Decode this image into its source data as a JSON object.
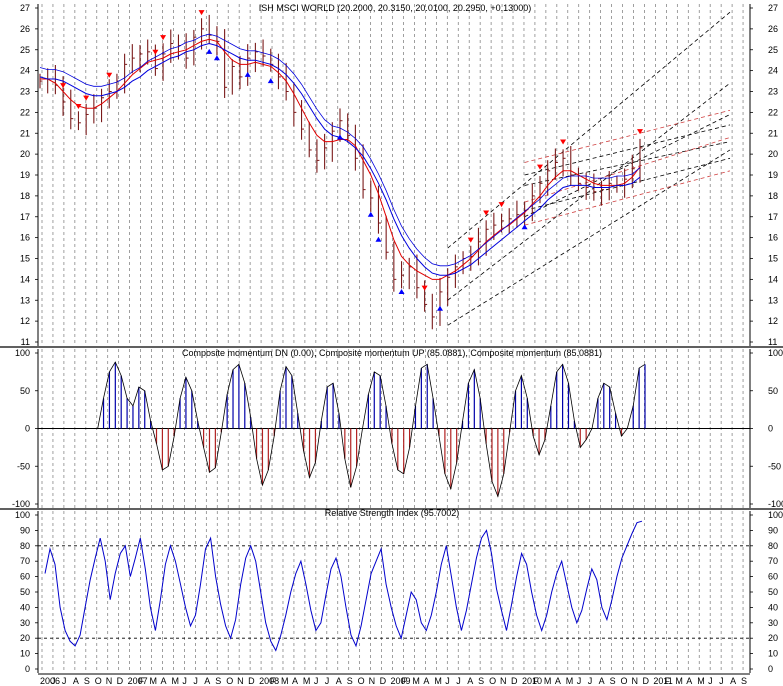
{
  "colors": {
    "price_bar": "#7a1a1a",
    "ma_red": "#e00000",
    "ma_blue": "#0000dd",
    "channel_black": "#000000",
    "channel_red": "#d04040",
    "signal_up": "#ff0000",
    "signal_down": "#0000ff",
    "mom_up": "#0000aa",
    "mom_dn": "#b22222",
    "rsi": "#0000cc",
    "grid": "#777777"
  },
  "chart_data": [
    {
      "type": "line",
      "title": "ISH MSCI WORLD (20.2000, 20.3150, 20.0100, 20.2950, +0.13000)",
      "ylim": [
        11,
        27
      ],
      "yticks": [
        "11",
        "12",
        "13",
        "14",
        "15",
        "16",
        "17",
        "18",
        "19",
        "20",
        "21",
        "22",
        "23",
        "24",
        "25",
        "26",
        "27"
      ],
      "series": [
        {
          "role": "close",
          "values": [
            23.5,
            23.6,
            23.3,
            22.5,
            21.7,
            21.5,
            21.9,
            22.2,
            22.7,
            23.0,
            23.5,
            24.3,
            24.6,
            24.8,
            24.9,
            24.1,
            24.8,
            25.3,
            25.2,
            24.6,
            25.6,
            26.0,
            25.7,
            25.4,
            23.2,
            24.2,
            23.7,
            24.6,
            24.9,
            24.7,
            24.3,
            23.7,
            23.0,
            22.0,
            21.2,
            20.2,
            19.7,
            20.3,
            21.1,
            21.6,
            20.9,
            19.8,
            18.3,
            17.9,
            16.7,
            15.3,
            14.0,
            14.2,
            14.6,
            13.6,
            12.8,
            12.2,
            13.4,
            14.1,
            14.6,
            15.0,
            15.1,
            15.8,
            16.4,
            16.6,
            16.8,
            16.9,
            17.1,
            17.3,
            18.0,
            18.6,
            19.2,
            19.6,
            19.8,
            19.0,
            18.6,
            18.4,
            18.2,
            18.3,
            18.6,
            18.5,
            18.8,
            19.3,
            20.3
          ]
        },
        {
          "role": "moving-average-fast",
          "values": [
            23.6,
            23.6,
            23.4,
            23.0,
            22.6,
            22.3,
            22.2,
            22.2,
            22.4,
            22.7,
            23.0,
            23.4,
            23.8,
            24.1,
            24.4,
            24.5,
            24.6,
            24.8,
            24.9,
            25.0,
            25.2,
            25.4,
            25.5,
            25.4,
            24.9,
            24.5,
            24.3,
            24.3,
            24.4,
            24.3,
            24.2,
            23.9,
            23.5,
            22.9,
            22.2,
            21.5,
            20.9,
            20.6,
            20.6,
            20.7,
            20.7,
            20.4,
            19.7,
            19.0,
            18.1,
            17.0,
            15.9,
            15.1,
            14.7,
            14.4,
            14.2,
            14.0,
            14.0,
            14.2,
            14.4,
            14.7,
            15.0,
            15.4,
            15.8,
            16.1,
            16.4,
            16.6,
            16.9,
            17.2,
            17.6,
            18.0,
            18.5,
            18.9,
            19.2,
            19.2,
            19.0,
            18.8,
            18.6,
            18.5,
            18.5,
            18.5,
            18.6,
            18.9,
            19.4
          ]
        },
        {
          "role": "moving-average-slow",
          "values": [
            23.7,
            23.6,
            23.6,
            23.5,
            23.3,
            23.1,
            22.9,
            22.8,
            22.8,
            22.9,
            23.0,
            23.2,
            23.5,
            23.7,
            24.0,
            24.2,
            24.4,
            24.6,
            24.7,
            24.9,
            25.0,
            25.2,
            25.3,
            25.2,
            25.0,
            24.8,
            24.6,
            24.5,
            24.5,
            24.4,
            24.3,
            24.1,
            23.8,
            23.4,
            22.9,
            22.3,
            21.7,
            21.2,
            20.9,
            20.8,
            20.6,
            20.3,
            19.9,
            19.3,
            18.6,
            17.8,
            16.9,
            16.1,
            15.5,
            15.0,
            14.6,
            14.3,
            14.2,
            14.2,
            14.3,
            14.5,
            14.7,
            15.0,
            15.3,
            15.6,
            15.9,
            16.2,
            16.5,
            16.8,
            17.1,
            17.4,
            17.8,
            18.1,
            18.4,
            18.5,
            18.5,
            18.5,
            18.4,
            18.4,
            18.4,
            18.5,
            18.5,
            18.6,
            18.9
          ]
        }
      ],
      "channels": [
        {
          "color": "black",
          "x": [
            53,
            78
          ],
          "y": [
            15.5,
            26.8
          ]
        },
        {
          "color": "black",
          "x": [
            53,
            78
          ],
          "y": [
            13.0,
            23.4
          ]
        },
        {
          "color": "black",
          "x": [
            53,
            78
          ],
          "y": [
            11.8,
            20.2
          ]
        },
        {
          "color": "black",
          "x": [
            63,
            78
          ],
          "y": [
            19.0,
            21.4
          ]
        },
        {
          "color": "black",
          "x": [
            63,
            78
          ],
          "y": [
            17.0,
            21.9
          ]
        },
        {
          "color": "black",
          "x": [
            63,
            78
          ],
          "y": [
            18.5,
            20.6
          ]
        },
        {
          "color": "black",
          "x": [
            63,
            78
          ],
          "y": [
            17.3,
            19.8
          ]
        },
        {
          "color": "red",
          "x": [
            63,
            78
          ],
          "y": [
            19.6,
            22.1
          ]
        },
        {
          "color": "red",
          "x": [
            63,
            78
          ],
          "y": [
            17.7,
            20.8
          ]
        },
        {
          "color": "red",
          "x": [
            63,
            78
          ],
          "y": [
            16.6,
            19.2
          ]
        }
      ],
      "signals_up": [
        3,
        5,
        6,
        9,
        15,
        16,
        21,
        50,
        56,
        58,
        60,
        65,
        68,
        78
      ],
      "signals_down": [
        22,
        23,
        27,
        30,
        39,
        43,
        44,
        47,
        52,
        63
      ]
    },
    {
      "type": "bar",
      "title": "Composite momentum DN (0.00), Composite momentum UP (85.0881), Composite momentum (85.0881)",
      "ylim": [
        -100,
        100
      ],
      "yticks": [
        "-100",
        "-50",
        "0",
        "50",
        "100"
      ],
      "values": [
        0,
        0,
        0,
        0,
        40,
        75,
        88,
        70,
        40,
        30,
        55,
        50,
        10,
        -20,
        -55,
        -50,
        -10,
        40,
        68,
        50,
        10,
        -25,
        -58,
        -52,
        -5,
        45,
        78,
        85,
        60,
        15,
        -40,
        -75,
        -55,
        -10,
        50,
        82,
        70,
        20,
        -30,
        -65,
        -45,
        10,
        55,
        60,
        20,
        -40,
        -78,
        -50,
        0,
        45,
        75,
        70,
        30,
        -20,
        -55,
        -60,
        -25,
        30,
        80,
        85,
        40,
        -10,
        -60,
        -80,
        -45,
        10,
        60,
        78,
        40,
        -20,
        -70,
        -90,
        -60,
        -5,
        50,
        70,
        40,
        -10,
        -35,
        -15,
        30,
        75,
        85,
        60,
        10,
        -25,
        -15,
        0,
        40,
        60,
        55,
        20,
        -10,
        0,
        30,
        80,
        85
      ]
    },
    {
      "type": "line",
      "title": "Relative Strength Index (95.7002)",
      "ylim": [
        0,
        100
      ],
      "yticks": [
        "0",
        "10",
        "20",
        "30",
        "40",
        "50",
        "60",
        "70",
        "80",
        "90",
        "100"
      ],
      "levels": [
        20,
        80
      ],
      "values": [
        62,
        78,
        68,
        40,
        25,
        18,
        15,
        22,
        40,
        58,
        72,
        85,
        70,
        45,
        62,
        75,
        80,
        60,
        72,
        85,
        65,
        40,
        25,
        45,
        68,
        80,
        70,
        55,
        40,
        28,
        35,
        55,
        78,
        85,
        60,
        42,
        28,
        20,
        32,
        55,
        72,
        80,
        70,
        50,
        30,
        18,
        12,
        22,
        35,
        50,
        62,
        70,
        55,
        38,
        25,
        30,
        48,
        65,
        72,
        60,
        40,
        22,
        15,
        28,
        45,
        62,
        70,
        78,
        55,
        40,
        28,
        20,
        35,
        50,
        45,
        30,
        25,
        35,
        50,
        68,
        80,
        60,
        40,
        25,
        38,
        55,
        72,
        85,
        90,
        75,
        52,
        38,
        25,
        42,
        60,
        75,
        68,
        50,
        35,
        25,
        35,
        50,
        62,
        70,
        55,
        40,
        30,
        38,
        52,
        65,
        58,
        40,
        32,
        45,
        60,
        72,
        80,
        88,
        95,
        96
      ]
    },
    {
      "type": "table",
      "x_tick_labels": [
        "2006",
        "J",
        "J",
        "A",
        "S",
        "O",
        "N",
        "D",
        "2007",
        "F",
        "M",
        "A",
        "M",
        "J",
        "J",
        "A",
        "S",
        "O",
        "N",
        "D",
        "2008",
        "F",
        "M",
        "A",
        "M",
        "J",
        "J",
        "A",
        "S",
        "O",
        "N",
        "D",
        "2009",
        "F",
        "M",
        "A",
        "M",
        "J",
        "J",
        "A",
        "S",
        "O",
        "N",
        "D",
        "2010",
        "F",
        "M",
        "A",
        "M",
        "J",
        "J",
        "A",
        "S",
        "O",
        "N",
        "D",
        "2011",
        "F",
        "M",
        "A",
        "M",
        "J",
        "J",
        "A",
        "S"
      ]
    }
  ]
}
